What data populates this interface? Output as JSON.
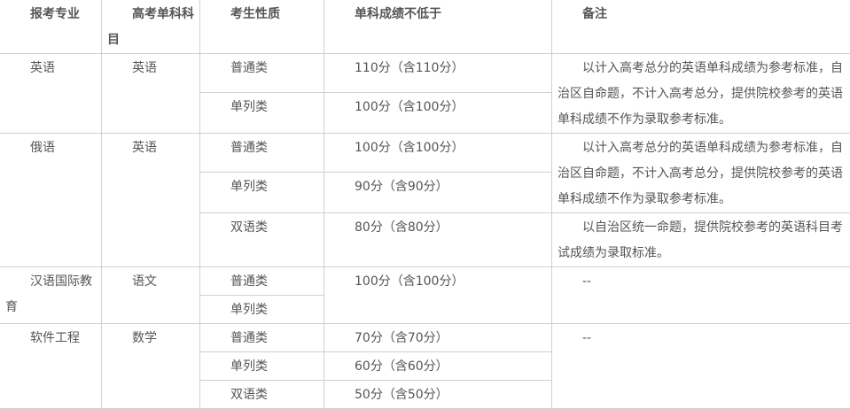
{
  "headers": [
    "报考专业",
    "高考单科科目",
    "考生性质",
    "单科成绩不低于",
    "备注"
  ],
  "rows": {
    "english": {
      "major": "英语",
      "subject": "英语",
      "types": [
        "普通类",
        "单列类"
      ],
      "scores": [
        "110分（含110分）",
        "100分（含100分）"
      ],
      "note": "以计入高考总分的英语单科成绩为参考标准，自治区自命题，不计入高考总分，提供院校参考的英语单科成绩不作为录取参考标准。"
    },
    "russian": {
      "major": "俄语",
      "subject": "英语",
      "types": [
        "普通类",
        "单列类",
        "双语类"
      ],
      "scores": [
        "100分（含100分）",
        "90分（含90分）",
        "80分（含80分）"
      ],
      "note": "以计入高考总分的英语单科成绩为参考标准，自治区自命题，不计入高考总分，提供院校参考的英语单科成绩不作为录取参考标准。",
      "note_bilingual": "以自治区统一命题，提供院校参考的英语科目考试成绩为录取标准。"
    },
    "chinese_intl": {
      "major": "汉语国际教育",
      "subject": "语文",
      "types": [
        "普通类",
        "单列类"
      ],
      "score": "100分（含100分）",
      "note": "--"
    },
    "software": {
      "major": "软件工程",
      "subject": "数学",
      "types": [
        "普通类",
        "单列类",
        "双语类"
      ],
      "scores": [
        "70分（含70分）",
        "60分（含60分）",
        "50分（含50分）"
      ],
      "note": "--"
    }
  }
}
